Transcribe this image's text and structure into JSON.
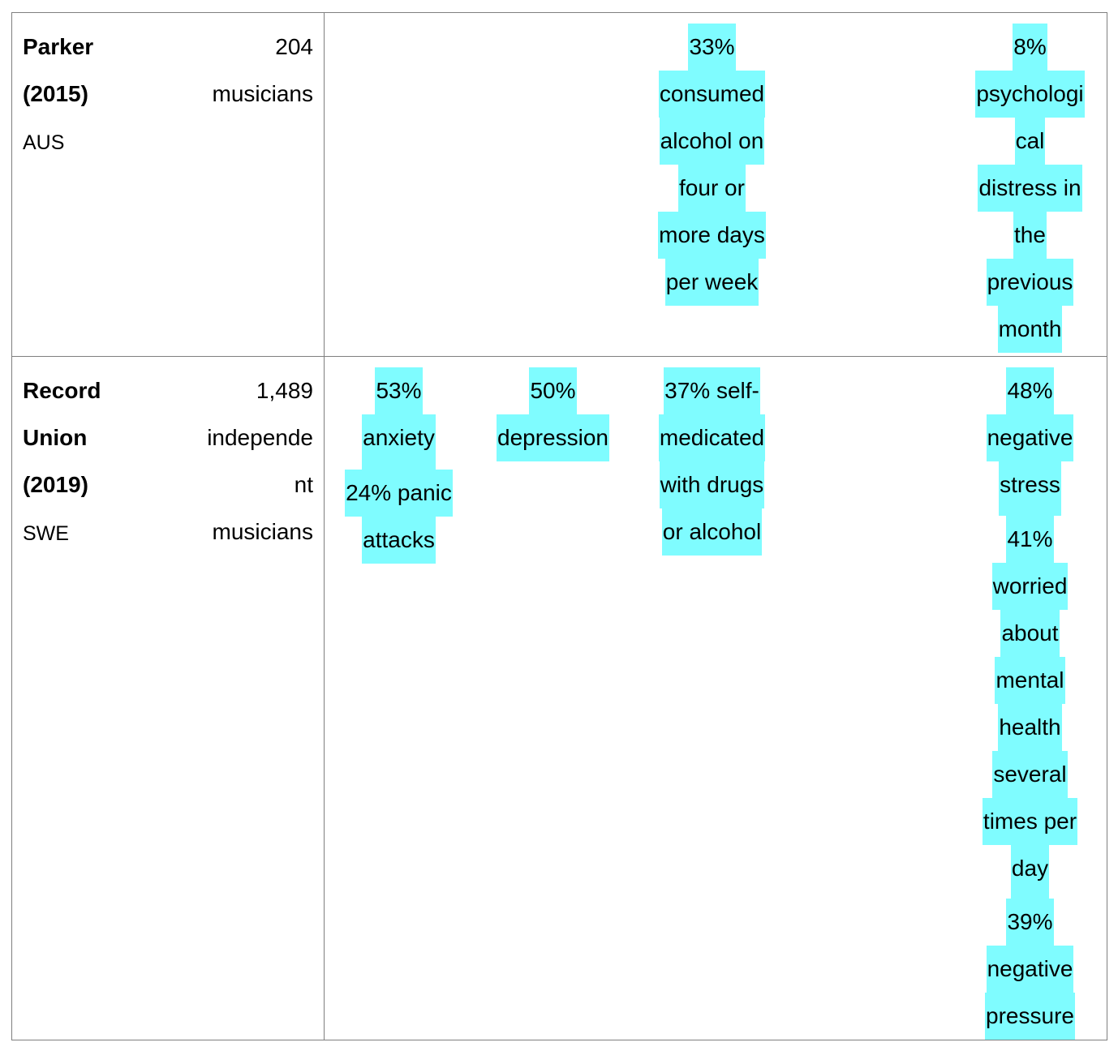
{
  "table": {
    "highlight_color": "#7ffcff",
    "border_color": "#7f7f7f",
    "rows": [
      {
        "study": {
          "name_lines": [
            "Parker",
            "(2015)"
          ],
          "country": "AUS"
        },
        "sample": {
          "lines": [
            "204",
            "musicians"
          ]
        },
        "anxiety": {
          "paragraphs": []
        },
        "depression": {
          "paragraphs": []
        },
        "substance": {
          "paragraphs": [
            [
              "33%",
              "consumed",
              "alcohol on",
              "four or",
              "more days",
              "per week"
            ]
          ]
        },
        "empty": {
          "paragraphs": []
        },
        "other": {
          "paragraphs": [
            [
              "8%",
              "psychologi",
              "cal",
              "distress in",
              "the",
              "previous",
              "month"
            ]
          ]
        }
      },
      {
        "study": {
          "name_lines": [
            "Record",
            "Union",
            "(2019)"
          ],
          "country": "SWE"
        },
        "sample": {
          "lines": [
            "1,489",
            "independe",
            "nt",
            "musicians"
          ]
        },
        "anxiety": {
          "paragraphs": [
            [
              "53%",
              "anxiety"
            ],
            [
              "24% panic",
              "attacks"
            ]
          ]
        },
        "depression": {
          "paragraphs": [
            [
              "50%",
              "depression"
            ]
          ]
        },
        "substance": {
          "paragraphs": [
            [
              "37% self-",
              "medicated",
              "with drugs",
              "or alcohol"
            ]
          ]
        },
        "empty": {
          "paragraphs": []
        },
        "other": {
          "paragraphs": [
            [
              "48%",
              "negative",
              "stress"
            ],
            [
              "41%",
              "worried",
              "about",
              "mental",
              "health",
              "several",
              "times per",
              "day"
            ],
            [
              "39%",
              "negative",
              "pressure"
            ]
          ]
        }
      }
    ]
  }
}
